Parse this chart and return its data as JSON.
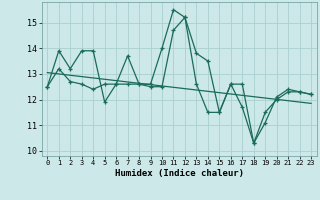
{
  "xlabel": "Humidex (Indice chaleur)",
  "background_color": "#cce8e8",
  "grid_color": "#aacfcf",
  "line_color": "#1a6b5a",
  "xlim": [
    -0.5,
    23.5
  ],
  "ylim": [
    9.8,
    15.8
  ],
  "yticks": [
    10,
    11,
    12,
    13,
    14,
    15
  ],
  "xticks": [
    0,
    1,
    2,
    3,
    4,
    5,
    6,
    7,
    8,
    9,
    10,
    11,
    12,
    13,
    14,
    15,
    16,
    17,
    18,
    19,
    20,
    21,
    22,
    23
  ],
  "series1_x": [
    0,
    1,
    2,
    3,
    4,
    5,
    6,
    7,
    8,
    9,
    10,
    11,
    12,
    13,
    14,
    15,
    16,
    17,
    18,
    19,
    20,
    21,
    22,
    23
  ],
  "series1_y": [
    12.5,
    13.9,
    13.2,
    13.9,
    13.9,
    11.9,
    12.6,
    13.7,
    12.6,
    12.6,
    14.0,
    15.5,
    15.2,
    13.8,
    13.5,
    11.5,
    12.6,
    12.6,
    10.3,
    11.1,
    12.1,
    12.4,
    12.3,
    12.2
  ],
  "series2_x": [
    0,
    1,
    2,
    3,
    4,
    5,
    6,
    7,
    8,
    9,
    10,
    11,
    12,
    13,
    14,
    15,
    16,
    17,
    18,
    19,
    20,
    21,
    22,
    23
  ],
  "series2_y": [
    12.5,
    13.2,
    12.7,
    12.6,
    12.4,
    12.6,
    12.6,
    12.6,
    12.6,
    12.5,
    12.5,
    14.7,
    15.2,
    12.6,
    11.5,
    11.5,
    12.6,
    11.7,
    10.3,
    11.5,
    12.0,
    12.3,
    12.3,
    12.2
  ],
  "trend_x": [
    0,
    23
  ],
  "trend_y": [
    13.05,
    11.85
  ]
}
